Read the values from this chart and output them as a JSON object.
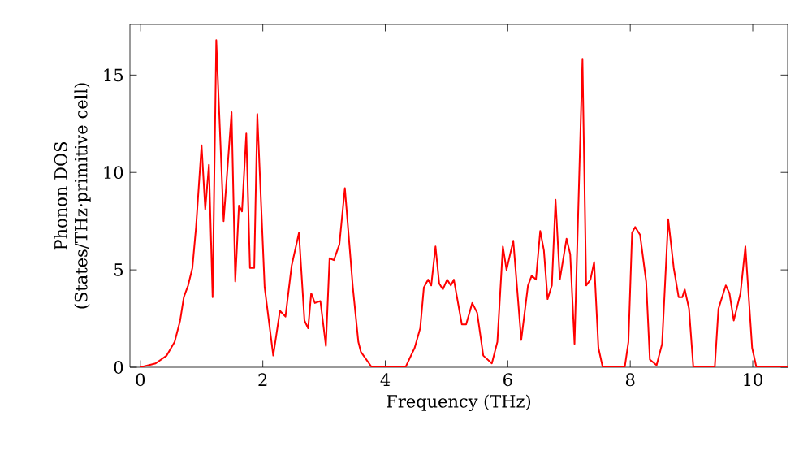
{
  "chart_data": {
    "type": "line",
    "xlabel": "Frequency (THz)",
    "ylabel": "Phonon DOS (States/THz·primitive cell)",
    "xlim": [
      -0.17,
      10.57
    ],
    "ylim": [
      0,
      17.6
    ],
    "xticks": [
      0,
      2,
      4,
      6,
      8,
      10
    ],
    "yticks": [
      0,
      5,
      10,
      15
    ],
    "marker": "none",
    "line_style": "solid",
    "series": [
      {
        "color": "#ff0000",
        "x": [
          0,
          0.25,
          0.43,
          0.56,
          0.65,
          0.71,
          0.78,
          0.85,
          0.91,
          1.0,
          1.06,
          1.12,
          1.18,
          1.24,
          1.36,
          1.49,
          1.55,
          1.61,
          1.66,
          1.73,
          1.79,
          1.86,
          1.91,
          2.03,
          2.17,
          2.28,
          2.37,
          2.47,
          2.59,
          2.68,
          2.74,
          2.79,
          2.85,
          2.94,
          3.03,
          3.09,
          3.16,
          3.25,
          3.34,
          3.47,
          3.56,
          3.6,
          3.78,
          4.33,
          4.48,
          4.57,
          4.63,
          4.7,
          4.75,
          4.82,
          4.88,
          4.94,
          5.01,
          5.07,
          5.12,
          5.25,
          5.32,
          5.42,
          5.5,
          5.6,
          5.74,
          5.83,
          5.92,
          5.98,
          6.09,
          6.22,
          6.33,
          6.39,
          6.46,
          6.53,
          6.59,
          6.65,
          6.72,
          6.78,
          6.85,
          6.96,
          7.02,
          7.09,
          7.22,
          7.28,
          7.35,
          7.41,
          7.48,
          7.55,
          7.91,
          7.97,
          8.03,
          8.08,
          8.16,
          8.26,
          8.32,
          8.43,
          8.52,
          8.62,
          8.71,
          8.79,
          8.85,
          8.89,
          8.96,
          9.03,
          9.38,
          9.44,
          9.56,
          9.62,
          9.69,
          9.8,
          9.88,
          9.99,
          10.06,
          10.57
        ],
        "values": [
          0,
          0.2,
          0.6,
          1.3,
          2.4,
          3.6,
          4.2,
          5.1,
          7.2,
          11.4,
          8.1,
          10.4,
          3.6,
          16.8,
          7.5,
          13.1,
          4.4,
          8.3,
          8.0,
          12.0,
          5.1,
          5.1,
          13.0,
          4.1,
          0.6,
          2.9,
          2.6,
          5.2,
          6.9,
          2.4,
          2.0,
          3.8,
          3.3,
          3.4,
          1.1,
          5.6,
          5.5,
          6.3,
          9.2,
          4.1,
          1.3,
          0.8,
          0,
          0,
          1.0,
          2.0,
          4.1,
          4.5,
          4.2,
          6.2,
          4.3,
          4.0,
          4.5,
          4.2,
          4.5,
          2.2,
          2.2,
          3.3,
          2.8,
          0.6,
          0.2,
          1.3,
          6.2,
          5.0,
          6.5,
          1.4,
          4.2,
          4.7,
          4.5,
          7.0,
          6.0,
          3.5,
          4.2,
          8.6,
          4.5,
          6.6,
          5.8,
          1.2,
          15.8,
          4.2,
          4.5,
          5.4,
          1.0,
          0,
          0,
          1.3,
          6.9,
          7.2,
          6.8,
          4.4,
          0.4,
          0.1,
          1.2,
          7.6,
          5.1,
          3.6,
          3.6,
          4.0,
          3.0,
          0,
          0,
          3.0,
          4.2,
          3.8,
          2.4,
          3.8,
          6.2,
          1.0,
          0,
          0
        ]
      }
    ]
  }
}
